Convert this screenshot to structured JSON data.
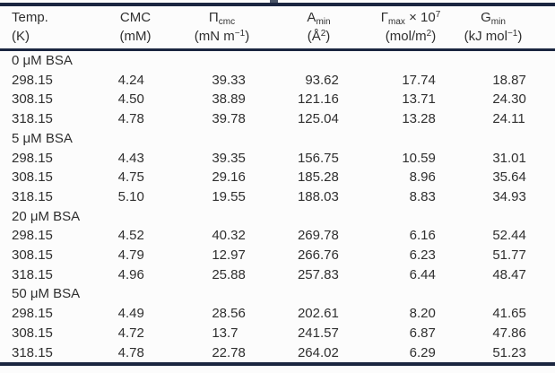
{
  "page": {
    "background_color": "#fcfcfc",
    "rule_color": "#1b2640",
    "text_color": "#2f2f2f"
  },
  "table": {
    "columns": [
      {
        "key": "temp",
        "line1": [
          {
            "t": "Temp."
          }
        ],
        "line2": [
          {
            "t": "(K)"
          }
        ]
      },
      {
        "key": "cmc",
        "line1": [
          {
            "t": "CMC"
          }
        ],
        "line2": [
          {
            "t": "(mM)"
          }
        ]
      },
      {
        "key": "pi-cmc",
        "line1": [
          {
            "t": "Π"
          },
          {
            "sub": "cmc"
          }
        ],
        "line2": [
          {
            "t": "(mN m"
          },
          {
            "sup": "−1"
          },
          {
            "t": ")"
          }
        ]
      },
      {
        "key": "a-min",
        "line1": [
          {
            "t": "A"
          },
          {
            "sub": "min"
          }
        ],
        "line2": [
          {
            "t": "(Å"
          },
          {
            "sup": "2"
          },
          {
            "t": ")"
          }
        ]
      },
      {
        "key": "gamma-max",
        "line1": [
          {
            "t": "Γ"
          },
          {
            "sub": "max"
          },
          {
            "t": " × 10"
          },
          {
            "sup": "7"
          }
        ],
        "line2": [
          {
            "t": "(mol/m"
          },
          {
            "sup": "2"
          },
          {
            "t": ")"
          }
        ]
      },
      {
        "key": "g-min",
        "line1": [
          {
            "t": "G"
          },
          {
            "sub": "min"
          }
        ],
        "line2": [
          {
            "t": "(kJ mol"
          },
          {
            "sup": "−1"
          },
          {
            "t": ")"
          }
        ]
      }
    ],
    "sections": [
      {
        "label": "0 μM BSA",
        "rows": [
          [
            "298.15",
            "4.24",
            "39.33",
            "93.62",
            "17.74",
            "18.87"
          ],
          [
            "308.15",
            "4.50",
            "38.89",
            "121.16",
            "13.71",
            "24.30"
          ],
          [
            "318.15",
            "4.78",
            "39.78",
            "125.04",
            "13.28",
            "24.11"
          ]
        ]
      },
      {
        "label": "5 μM BSA",
        "rows": [
          [
            "298.15",
            "4.43",
            "39.35",
            "156.75",
            "10.59",
            "31.01"
          ],
          [
            "308.15",
            "4.75",
            "29.16",
            "185.28",
            "8.96",
            "35.64"
          ],
          [
            "318.15",
            "5.10",
            "19.55",
            "188.03",
            "8.83",
            "34.93"
          ]
        ]
      },
      {
        "label": "20 μM BSA",
        "rows": [
          [
            "298.15",
            "4.52",
            "40.32",
            "269.78",
            "6.16",
            "52.44"
          ],
          [
            "308.15",
            "4.79",
            "12.97",
            "266.76",
            "6.23",
            "51.77"
          ],
          [
            "318.15",
            "4.96",
            "25.88",
            "257.83",
            "6.44",
            "48.47"
          ]
        ]
      },
      {
        "label": "50 μM BSA",
        "rows": [
          [
            "298.15",
            "4.49",
            "28.56",
            "202.61",
            "8.20",
            "41.65"
          ],
          [
            "308.15",
            "4.72",
            "13.7",
            "241.57",
            "6.87",
            "47.86"
          ],
          [
            "318.15",
            "4.78",
            "22.78",
            "264.02",
            "6.29",
            "51.23"
          ]
        ]
      }
    ]
  }
}
